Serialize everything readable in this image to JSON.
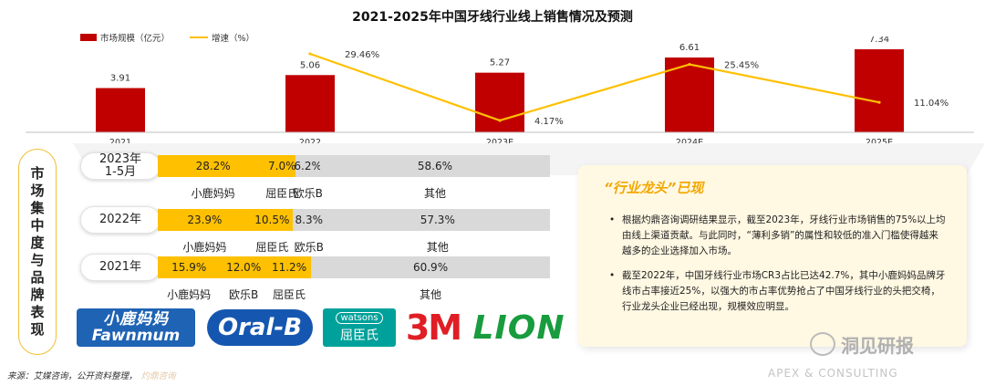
{
  "title": "2021-2025年中国牙线行业线上销售情况及预测",
  "legend": {
    "bar": "市场规模（亿元）",
    "line": "增速（%）"
  },
  "colors": {
    "bar": "#c00000",
    "line": "#ffc000",
    "share_major": "#ffc000",
    "share_other": "#d9d9d9",
    "panel_title": "#f2a800"
  },
  "chart_data": {
    "type": "bar+line",
    "categories": [
      "2021",
      "2022",
      "2023E",
      "2024E",
      "2025E"
    ],
    "series": [
      {
        "name": "市场规模（亿元）",
        "type": "bar",
        "values": [
          3.91,
          5.06,
          5.27,
          6.61,
          7.34
        ],
        "labels": [
          "3.91",
          "5.06",
          "5.27",
          "6.61",
          "7.34"
        ]
      },
      {
        "name": "增速（%）",
        "type": "line",
        "values": [
          null,
          29.46,
          4.17,
          25.45,
          11.04
        ],
        "labels": [
          "",
          "29.46%",
          "4.17%",
          "25.45%",
          "11.04%"
        ]
      }
    ],
    "grid": false
  },
  "side_title": "市场集中度与品牌表现",
  "share": {
    "rows": [
      {
        "year": "2023年\n1-5月",
        "segments": [
          {
            "value": 28.2,
            "label": "28.2%",
            "brand": "小鹿妈妈",
            "color": "gold"
          },
          {
            "value": 7.0,
            "label": "7.0%",
            "brand": "屈臣氏",
            "color": "gold"
          },
          {
            "value": 6.2,
            "label": "6.2%",
            "brand": "欧乐B",
            "color": "gray"
          },
          {
            "value": 58.6,
            "label": "58.6%",
            "brand": "其他",
            "color": "gray"
          }
        ]
      },
      {
        "year": "2022年",
        "segments": [
          {
            "value": 23.9,
            "label": "23.9%",
            "brand": "小鹿妈妈",
            "color": "gold"
          },
          {
            "value": 10.5,
            "label": "10.5%",
            "brand": "屈臣氏",
            "color": "gold"
          },
          {
            "value": 8.3,
            "label": "8.3%",
            "brand": "欧乐B",
            "color": "gray"
          },
          {
            "value": 57.3,
            "label": "57.3%",
            "brand": "其他",
            "color": "gray"
          }
        ]
      },
      {
        "year": "2021年",
        "segments": [
          {
            "value": 15.9,
            "label": "15.9%",
            "brand": "小鹿妈妈",
            "color": "gold"
          },
          {
            "value": 12.0,
            "label": "12.0%",
            "brand": "欧乐B",
            "color": "gold"
          },
          {
            "value": 11.2,
            "label": "11.2%",
            "brand": "屈臣氏",
            "color": "gold"
          },
          {
            "value": 60.9,
            "label": "60.9%",
            "brand": "其他",
            "color": "gray"
          }
        ]
      }
    ]
  },
  "logos": {
    "fawnmum_cn": "小鹿妈妈",
    "fawnmum_en": "Fawnmum",
    "oralb": "Oral-B",
    "watsons_en": "watsons",
    "watsons_cn": "屈臣氏",
    "threem": "3M",
    "lion": "LION"
  },
  "panel": {
    "title": "“行业龙头”已现",
    "bullets": [
      "根据灼鼎咨询调研结果显示，截至2023年，牙线行业市场销售的75%以上均由线上渠道贡献。与此同时，“薄利多销”的属性和较低的准入门槛使得越来越多的企业选择加入市场。",
      "截至2022年，中国牙线行业市场CR3占比已达42.7%，其中小鹿妈妈品牌牙线市占率接近25%，以强大的市占率优势抢占了中国牙线行业的头把交椅，行业龙头企业已经出现，规模效应明显。"
    ]
  },
  "watermark": "洞见研报",
  "footer_brand": "APEX & CONSULTING",
  "source": "来源：艾媒咨询，公开资料整理，",
  "source_faint": "灼鼎咨询"
}
